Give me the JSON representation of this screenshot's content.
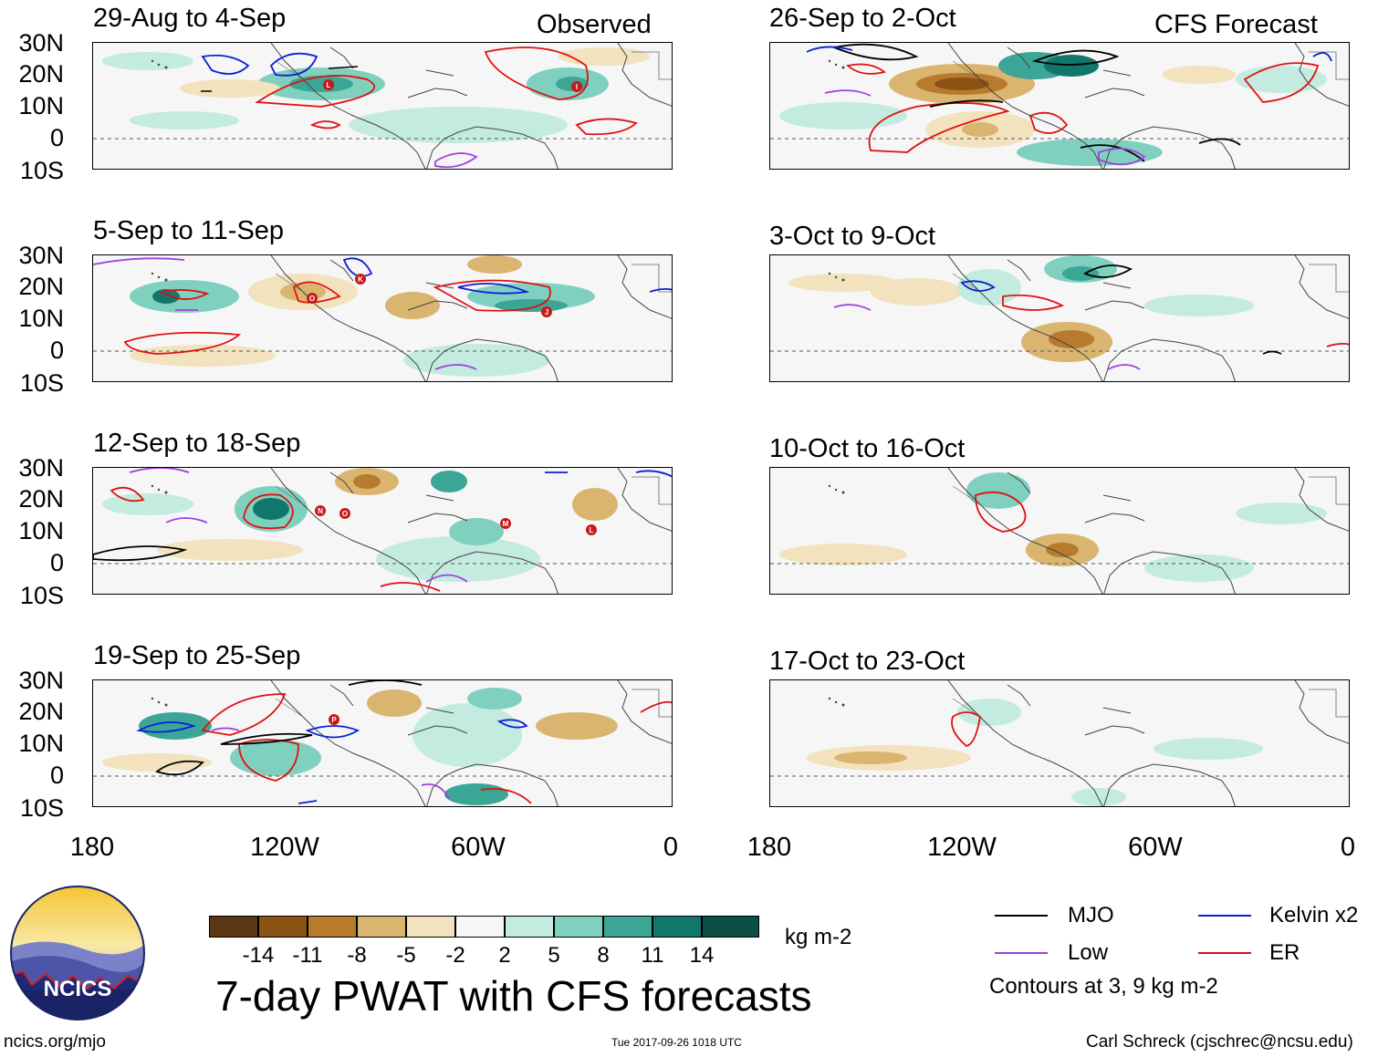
{
  "panels": [
    {
      "title": "29-Aug to 4-Sep",
      "tag": "Observed"
    },
    {
      "title": "26-Sep to 2-Oct",
      "tag": "CFS Forecast"
    },
    {
      "title": "5-Sep to 11-Sep",
      "tag": ""
    },
    {
      "title": "3-Oct to 9-Oct",
      "tag": ""
    },
    {
      "title": "12-Sep to 18-Sep",
      "tag": ""
    },
    {
      "title": "10-Oct to 16-Oct",
      "tag": ""
    },
    {
      "title": "19-Sep to 25-Sep",
      "tag": ""
    },
    {
      "title": "17-Oct to 23-Oct",
      "tag": ""
    }
  ],
  "y_axis_labels": [
    "30N",
    "20N",
    "10N",
    "0",
    "10S"
  ],
  "x_axis_labels": [
    "180",
    "120W",
    "60W",
    "0"
  ],
  "colorbar": {
    "colors": [
      "#5a3612",
      "#8a5314",
      "#b87a2c",
      "#d9b56f",
      "#f2e2bd",
      "#f6f6f6",
      "#c3ebe0",
      "#80d0bf",
      "#3ba596",
      "#12766a",
      "#0b4f45"
    ],
    "labels": [
      "-14",
      "-11",
      "-8",
      "-5",
      "-2",
      "2",
      "5",
      "8",
      "11",
      "14"
    ],
    "units": "kg m-2"
  },
  "title": "7-day PWAT with CFS forecasts",
  "legend": {
    "items": [
      {
        "label": "MJO",
        "color": "#000000"
      },
      {
        "label": "Kelvin x2",
        "color": "#0a1fd6"
      },
      {
        "label": "Low",
        "color": "#a040e0"
      },
      {
        "label": "ER",
        "color": "#e01010"
      }
    ],
    "note": "Contours at 3, 9 kg m-2"
  },
  "footer": {
    "url": "ncics.org/mjo",
    "timestamp": "Tue 2017-09-26 1018 UTC",
    "credit": "Carl Schreck (cjschrec@ncsu.edu)"
  },
  "logo": {
    "text": "NCICS"
  },
  "storms": [
    {
      "panel": 0,
      "letter": "L"
    },
    {
      "panel": 0,
      "letter": "I"
    },
    {
      "panel": 2,
      "letter": "K"
    },
    {
      "panel": 2,
      "letter": "O"
    },
    {
      "panel": 2,
      "letter": "J"
    },
    {
      "panel": 4,
      "letter": "N"
    },
    {
      "panel": 4,
      "letter": "O"
    },
    {
      "panel": 4,
      "letter": "M"
    },
    {
      "panel": 4,
      "letter": "L"
    },
    {
      "panel": 6,
      "letter": "P"
    }
  ]
}
